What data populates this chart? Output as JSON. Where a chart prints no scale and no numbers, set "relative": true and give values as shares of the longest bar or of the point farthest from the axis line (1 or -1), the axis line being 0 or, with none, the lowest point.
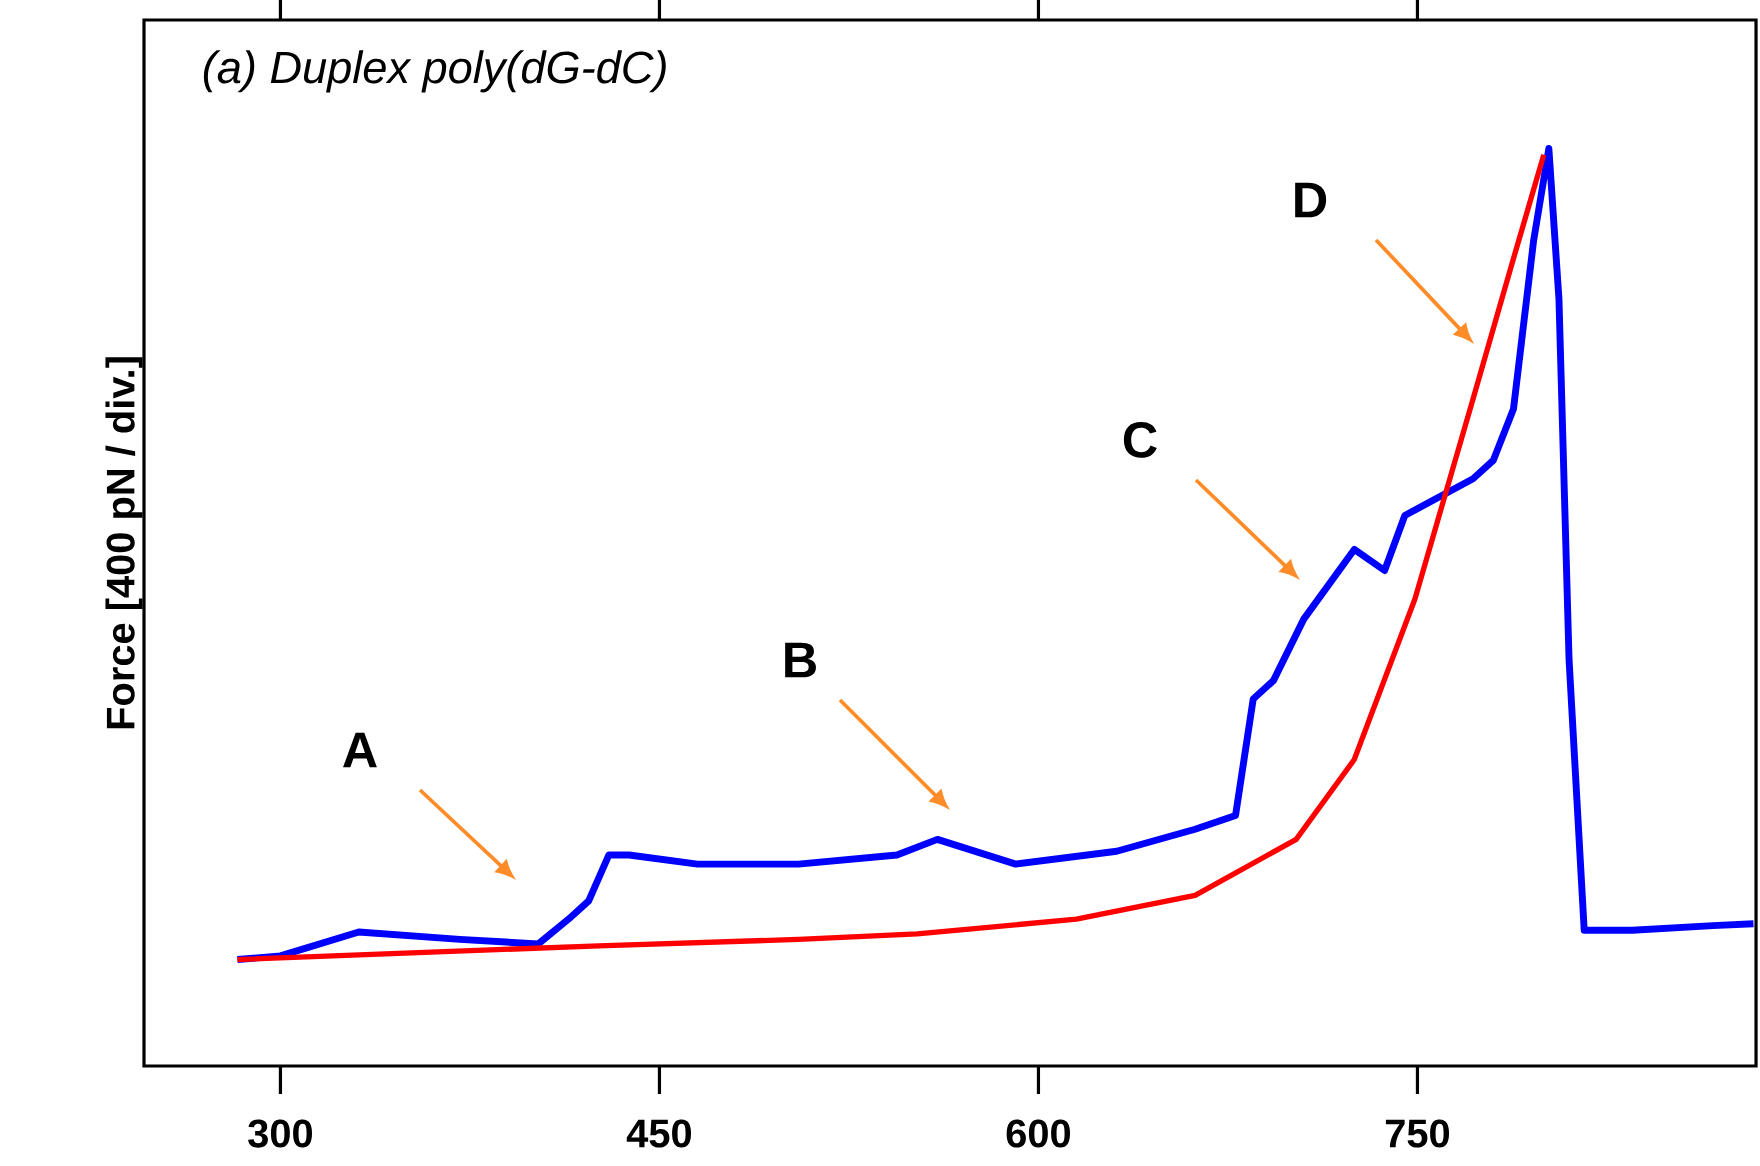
{
  "chart_data": {
    "type": "line",
    "title": "(a) Duplex poly(dG-dC)",
    "ylabel": "Force [400 pN / div.]",
    "relative": true,
    "xlim": [
      246,
      884
    ],
    "xticks": [
      300,
      450,
      600,
      750
    ],
    "marker": "none",
    "line_style": "solid",
    "series": [
      {
        "color": "#0000ff",
        "x": [
          283,
          300,
          331,
          371,
          402,
          414,
          422,
          430,
          438,
          465,
          505,
          544,
          560,
          591,
          631,
          662,
          678,
          685,
          693,
          705,
          725,
          737,
          745,
          772,
          780,
          788,
          796,
          802,
          806,
          810,
          816,
          835,
          867,
          883
        ],
        "values": [
          0.116,
          0.12,
          0.146,
          0.138,
          0.133,
          0.16,
          0.18,
          0.23,
          0.23,
          0.22,
          0.22,
          0.23,
          0.247,
          0.22,
          0.234,
          0.258,
          0.273,
          0.4,
          0.42,
          0.487,
          0.563,
          0.54,
          0.6,
          0.64,
          0.66,
          0.716,
          0.9,
          1.0,
          0.836,
          0.443,
          0.148,
          0.148,
          0.153,
          0.155
        ]
      },
      {
        "color": "#ff0000",
        "x": [
          283,
          426,
          505,
          552,
          615,
          662,
          702,
          725,
          749,
          772,
          788,
          800
        ],
        "values": [
          0.116,
          0.131,
          0.138,
          0.144,
          0.16,
          0.186,
          0.247,
          0.334,
          0.509,
          0.727,
          0.88,
          0.993
        ]
      }
    ],
    "annotations": [
      "A",
      "B",
      "C",
      "D"
    ]
  }
}
